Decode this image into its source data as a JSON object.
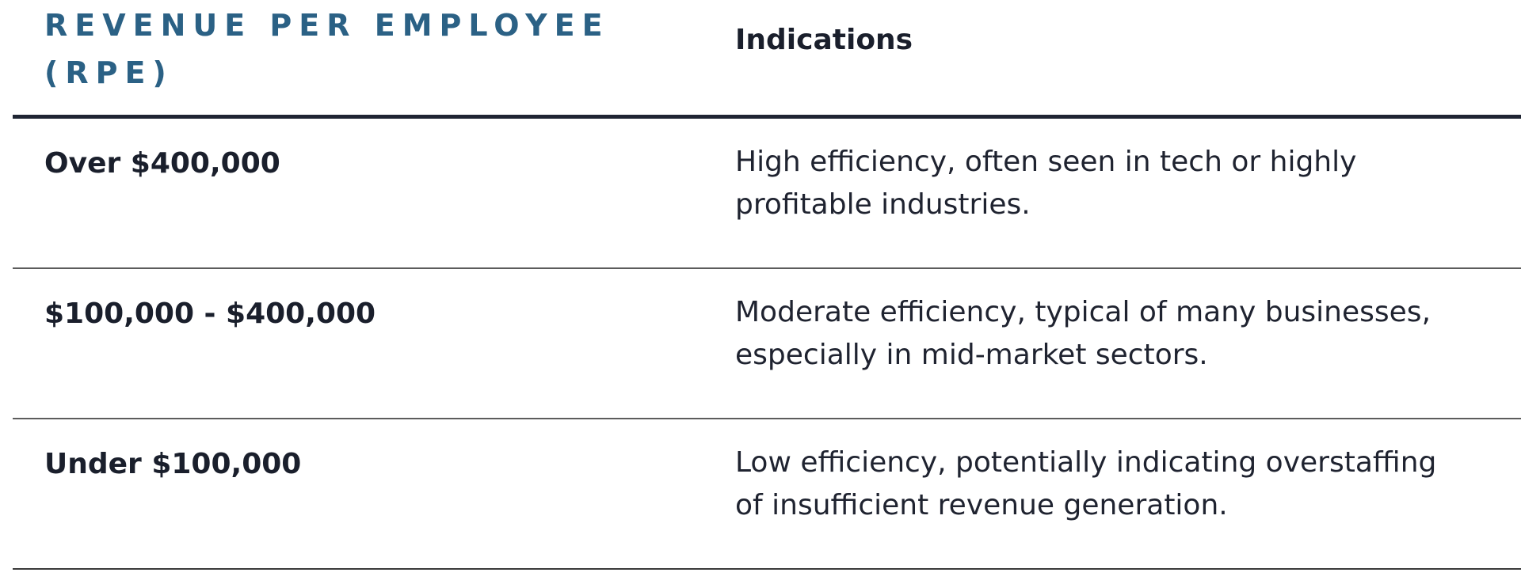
{
  "table": {
    "headers": {
      "rpe": "REVENUE PER EMPLOYEE (RPE)",
      "indications": "Indications"
    },
    "rows": [
      {
        "rpe": "Over $400,000",
        "indication": "High efficiency, often seen in tech or highly profitable industries."
      },
      {
        "rpe": "$100,000 - $400,000",
        "indication": "Moderate efficiency, typical of many businesses, especially in mid-market sectors."
      },
      {
        "rpe": "Under $100,000",
        "indication": "Low efficiency, potentially indicating overstaffing of insufficient revenue generation."
      }
    ]
  },
  "colors": {
    "header_accent": "#2b6185",
    "text": "#1a1f2c",
    "divider": "#1f2533"
  }
}
